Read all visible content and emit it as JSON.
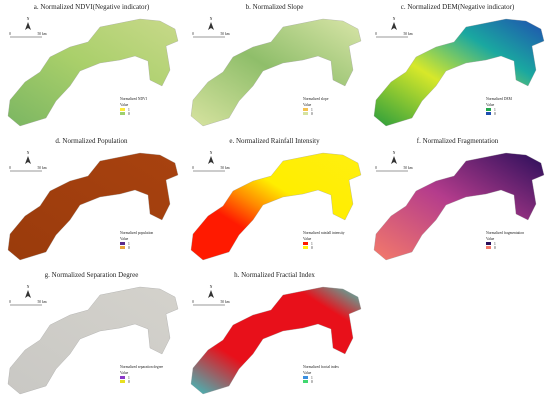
{
  "panels": [
    {
      "title": "a. Normalized NDVI(Negative indicator)",
      "legend_title": "Normalized NDVI",
      "value_label": "Value",
      "high": "1",
      "low": "0"
    },
    {
      "title": "b. Normalized Slope",
      "legend_title": "Normalized slope",
      "value_label": "Value",
      "high": "1",
      "low": "0"
    },
    {
      "title": "c. Normalized DEM(Negative indicator)",
      "legend_title": "Normalized DEM",
      "value_label": "Value",
      "high": "1",
      "low": "0"
    },
    {
      "title": "d. Normalized Population",
      "legend_title": "Normalized population",
      "value_label": "Value",
      "high": "1",
      "low": "0"
    },
    {
      "title": "e. Normalized Rainfall Intensity",
      "legend_title": "Normalized rainfall intensity",
      "value_label": "Value",
      "high": "1",
      "low": "0"
    },
    {
      "title": "f. Normalized Fragmentation",
      "legend_title": "Normalized fragmentation",
      "value_label": "Value",
      "high": "1",
      "low": "0"
    },
    {
      "title": "g. Normalized Separation Degree",
      "legend_title": "Normalized separation degree",
      "value_label": "Value",
      "high": "1",
      "low": "0"
    },
    {
      "title": "h. Normalized Fractial Index",
      "legend_title": "Normalized fractal index",
      "value_label": "Value",
      "high": "1",
      "low": "0"
    }
  ],
  "north_label": "N",
  "scale_start": "0",
  "scale_end": "50 km"
}
